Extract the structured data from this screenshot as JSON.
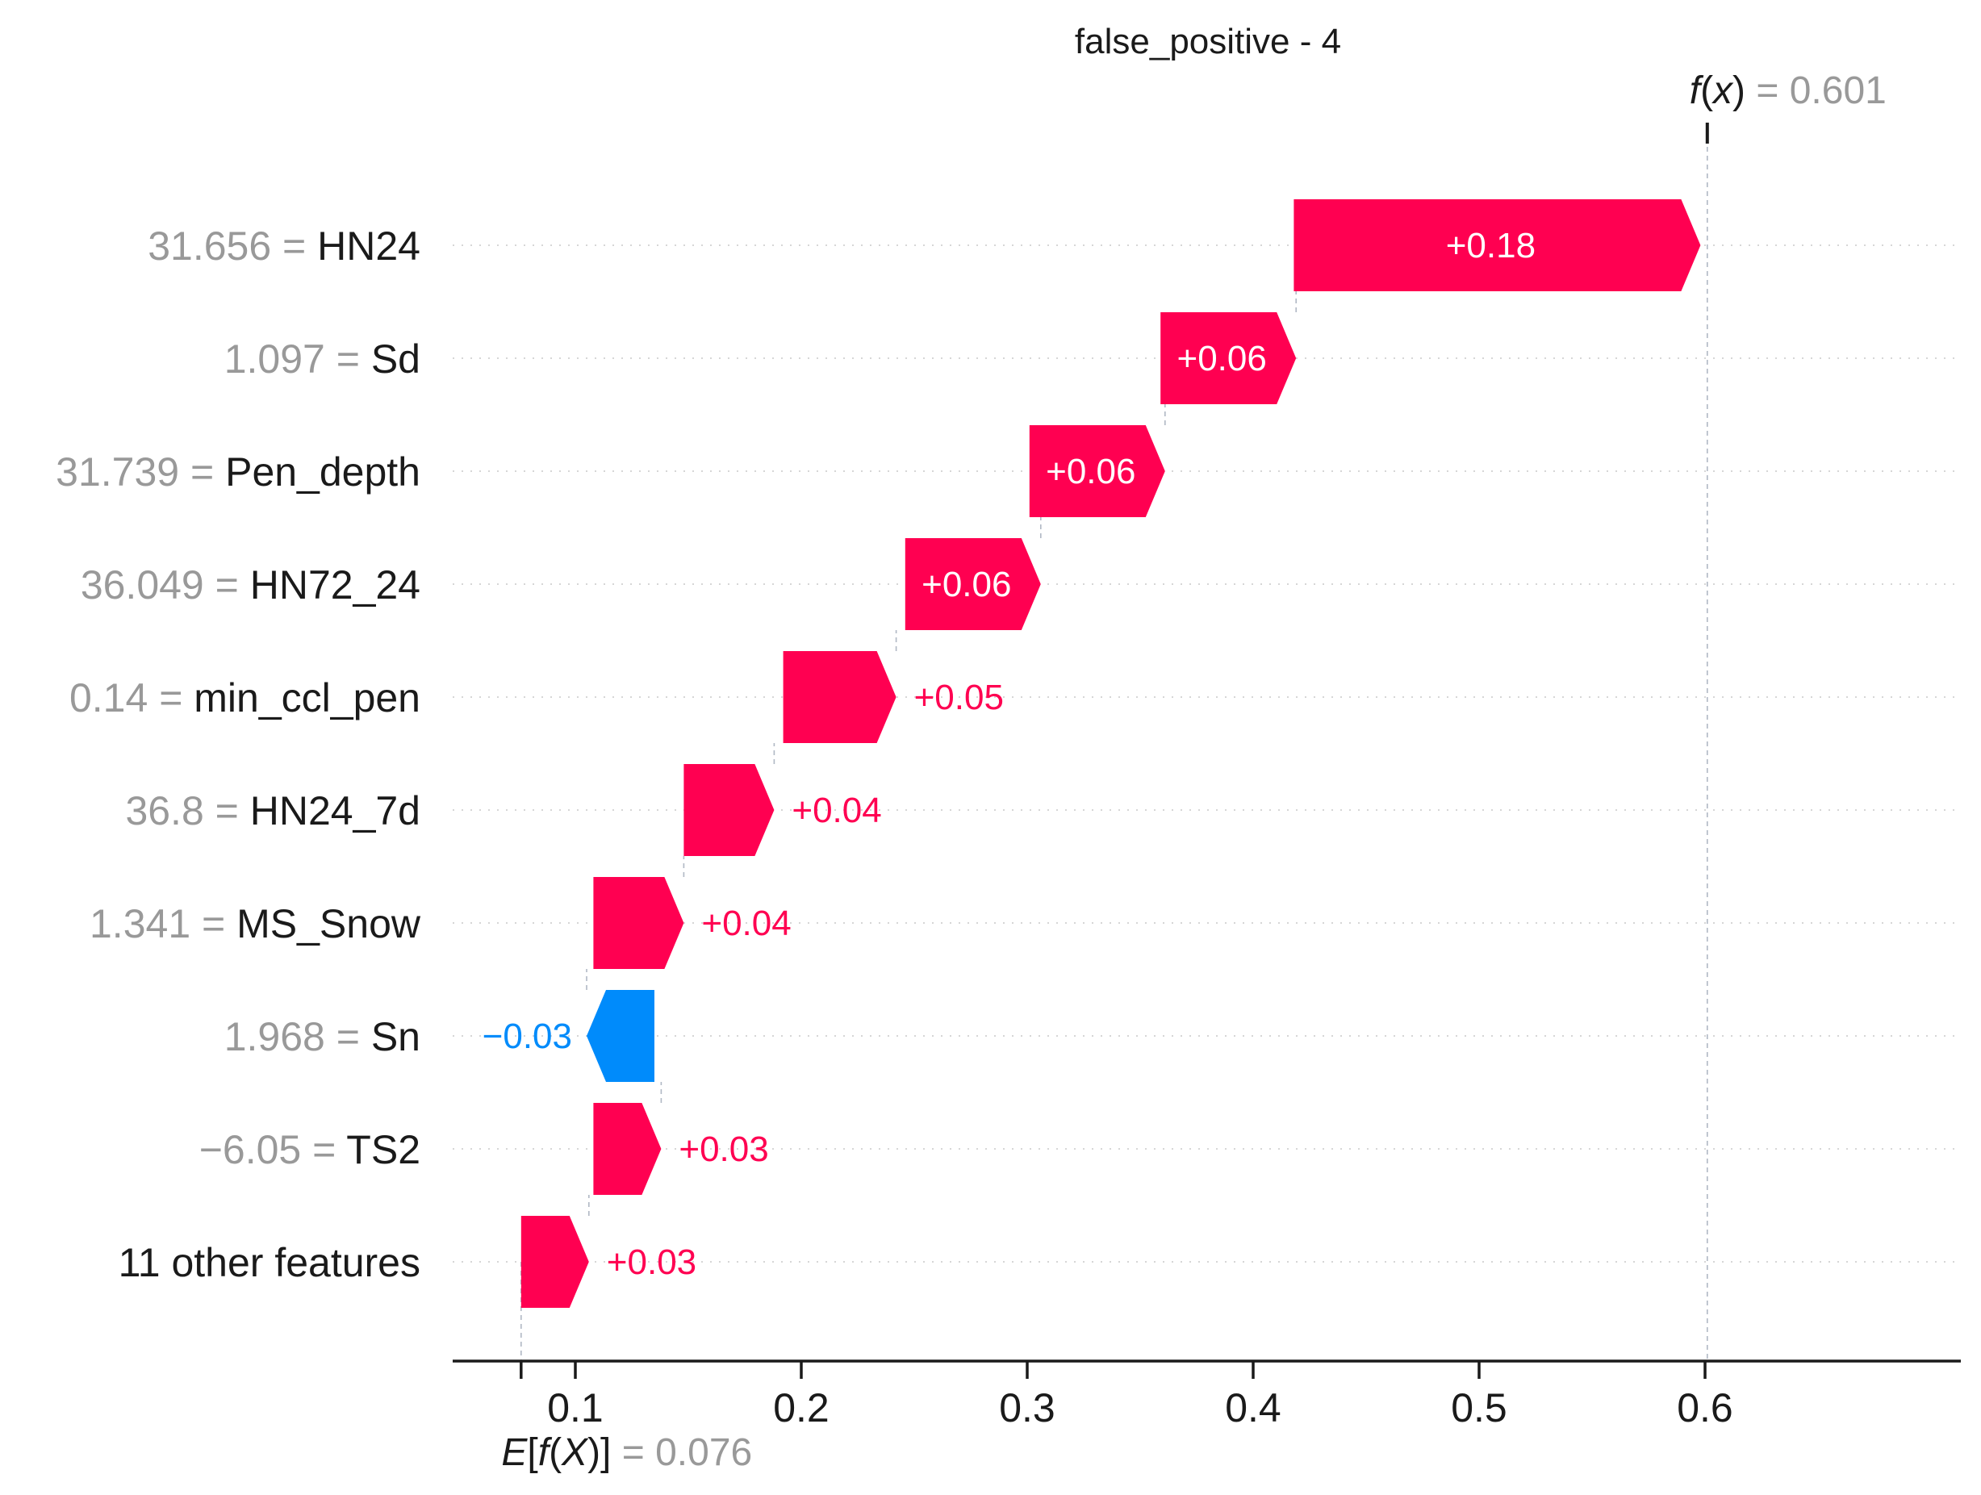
{
  "title": "false_positive - 4",
  "fx": {
    "prefix": "f",
    "open": "(",
    "var": "x",
    "close": ")",
    "eq": " = ",
    "value": "0.601"
  },
  "efx": {
    "prefix": "E",
    "open": "[",
    "f": "f",
    "paren_open": "(",
    "var": "X",
    "paren_close": ")",
    "close": "]",
    "eq": " = ",
    "value": "0.076"
  },
  "colors": {
    "positive": "#ff0051",
    "negative": "#008bfb",
    "positive_text_outside": "#ff0051",
    "negative_text_outside": "#008bfb",
    "label_inside": "#ffffff",
    "value_gray": "#999999"
  },
  "chart_data": {
    "type": "waterfall",
    "title": "false_positive - 4",
    "base_value": 0.076,
    "output_value": 0.601,
    "xlim": [
      0.02,
      0.69
    ],
    "xticks": [
      0.1,
      0.2,
      0.3,
      0.4,
      0.5,
      0.6
    ],
    "xtick_labels": [
      "0.1",
      "0.2",
      "0.3",
      "0.4",
      "0.5",
      "0.6"
    ],
    "features": [
      {
        "value": "31.656",
        "name": "HN24",
        "contribution": 0.18,
        "start": 0.418,
        "label": "+0.18"
      },
      {
        "value": "1.097",
        "name": "Sd",
        "contribution": 0.06,
        "start": 0.359,
        "label": "+0.06"
      },
      {
        "value": "31.739",
        "name": "Pen_depth",
        "contribution": 0.06,
        "start": 0.301,
        "label": "+0.06"
      },
      {
        "value": "36.049",
        "name": "HN72_24",
        "contribution": 0.06,
        "start": 0.246,
        "label": "+0.06"
      },
      {
        "value": "0.14",
        "name": "min_ccl_pen",
        "contribution": 0.05,
        "start": 0.192,
        "label": "+0.05"
      },
      {
        "value": "36.8",
        "name": "HN24_7d",
        "contribution": 0.04,
        "start": 0.148,
        "label": "+0.04"
      },
      {
        "value": "1.341",
        "name": "MS_Snow",
        "contribution": 0.04,
        "start": 0.108,
        "label": "+0.04"
      },
      {
        "value": "1.968",
        "name": "Sn",
        "contribution": -0.03,
        "start": 0.135,
        "label": "−0.03"
      },
      {
        "value": "−6.05",
        "name": "TS2",
        "contribution": 0.03,
        "start": 0.108,
        "label": "+0.03"
      },
      {
        "value": "",
        "name": "11 other features",
        "contribution": 0.03,
        "start": 0.076,
        "label": "+0.03"
      }
    ],
    "eq_sign": " = "
  }
}
